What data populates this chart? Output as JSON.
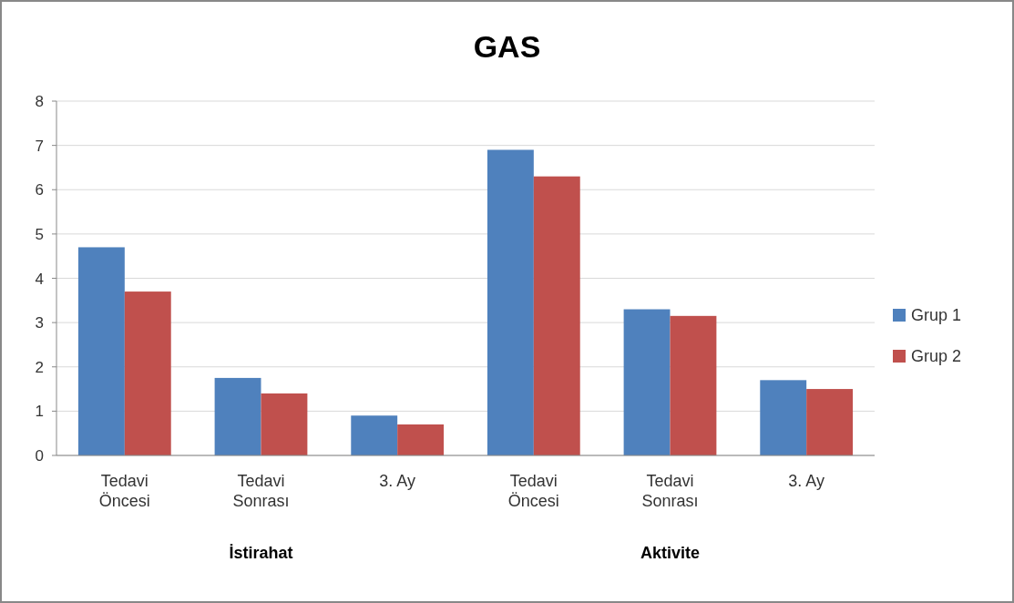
{
  "chart_data": {
    "type": "bar",
    "title": "GAS",
    "categories": [
      "Tedavi Öncesi",
      "Tedavi Sonrası",
      "3. Ay",
      "Tedavi Öncesi",
      "Tedavi Sonrası",
      "3. Ay"
    ],
    "series": [
      {
        "name": "Grup 1",
        "color": "#4f81bd",
        "values": [
          4.7,
          1.75,
          0.9,
          6.9,
          3.3,
          1.7
        ]
      },
      {
        "name": "Grup 2",
        "color": "#c0504d",
        "values": [
          3.7,
          1.4,
          0.7,
          6.3,
          3.15,
          1.5
        ]
      }
    ],
    "annotations": [
      "İstirahat",
      "Aktivite"
    ],
    "ylim": [
      0,
      8
    ],
    "yticks": [
      0,
      1,
      2,
      3,
      4,
      5,
      6,
      7,
      8
    ],
    "grid": "y",
    "legend": "right"
  }
}
